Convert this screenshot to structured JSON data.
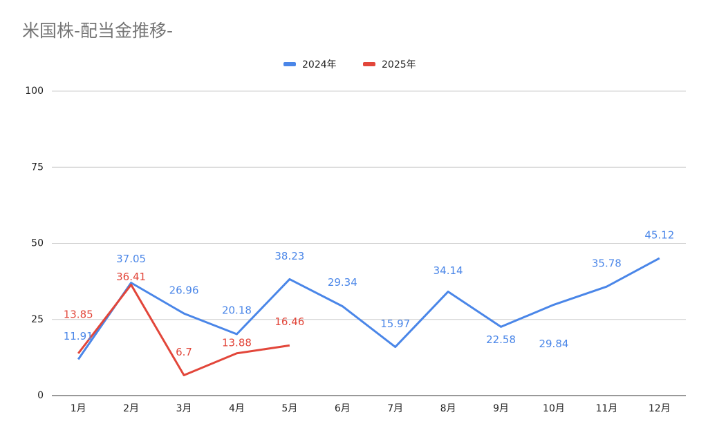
{
  "chart_data": {
    "type": "line",
    "title": "米国株-配当金推移-",
    "categories": [
      "1月",
      "2月",
      "3月",
      "4月",
      "5月",
      "6月",
      "7月",
      "8月",
      "9月",
      "10月",
      "11月",
      "12月"
    ],
    "series": [
      {
        "name": "2024年",
        "color": "#4a86e8",
        "values": [
          11.91,
          37.05,
          26.96,
          20.18,
          38.23,
          29.34,
          15.97,
          34.14,
          22.58,
          29.84,
          35.78,
          45.12
        ]
      },
      {
        "name": "2025年",
        "color": "#e2463a",
        "values": [
          13.85,
          36.41,
          6.7,
          13.88,
          16.46,
          null,
          null,
          null,
          null,
          null,
          null,
          null
        ]
      }
    ],
    "ylim": [
      0,
      100
    ],
    "yticks": [
      0,
      25,
      50,
      75,
      100
    ],
    "grid": true,
    "legend": "top"
  }
}
